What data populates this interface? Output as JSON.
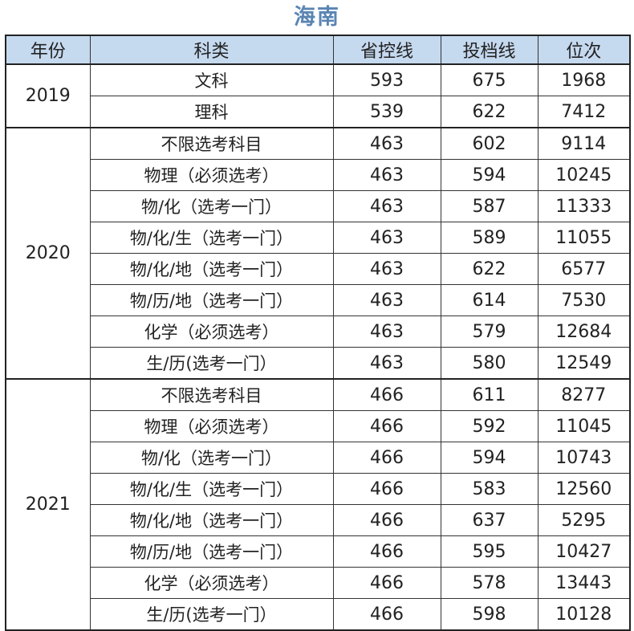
{
  "title": "海南",
  "headers": [
    "年份",
    "科类",
    "省控线",
    "投档线",
    "位次"
  ],
  "groups": [
    {
      "year": "2019",
      "rows": [
        {
          "category": "文科",
          "provincial": "593",
          "cutoff": "675",
          "rank": "1968"
        },
        {
          "category": "理科",
          "provincial": "539",
          "cutoff": "622",
          "rank": "7412"
        }
      ]
    },
    {
      "year": "2020",
      "rows": [
        {
          "category": "不限选考科目",
          "provincial": "463",
          "cutoff": "602",
          "rank": "9114"
        },
        {
          "category": "物理（必须选考）",
          "provincial": "463",
          "cutoff": "594",
          "rank": "10245"
        },
        {
          "category": "物/化（选考一门）",
          "provincial": "463",
          "cutoff": "587",
          "rank": "11333"
        },
        {
          "category": "物/化/生（选考一门）",
          "provincial": "463",
          "cutoff": "589",
          "rank": "11055"
        },
        {
          "category": "物/化/地（选考一门）",
          "provincial": "463",
          "cutoff": "622",
          "rank": "6577"
        },
        {
          "category": "物/历/地（选考一门）",
          "provincial": "463",
          "cutoff": "614",
          "rank": "7530"
        },
        {
          "category": "化学（必须选考）",
          "provincial": "463",
          "cutoff": "579",
          "rank": "12684"
        },
        {
          "category": "生/历(选考一门）",
          "provincial": "463",
          "cutoff": "580",
          "rank": "12549"
        }
      ]
    },
    {
      "year": "2021",
      "rows": [
        {
          "category": "不限选考科目",
          "provincial": "466",
          "cutoff": "611",
          "rank": "8277"
        },
        {
          "category": "物理（必须选考）",
          "provincial": "466",
          "cutoff": "592",
          "rank": "11045"
        },
        {
          "category": "物/化（选考一门）",
          "provincial": "466",
          "cutoff": "594",
          "rank": "10743"
        },
        {
          "category": "物/化/生（选考一门）",
          "provincial": "466",
          "cutoff": "583",
          "rank": "12560"
        },
        {
          "category": "物/化/地（选考一门）",
          "provincial": "466",
          "cutoff": "637",
          "rank": "5295"
        },
        {
          "category": "物/历/地（选考一门）",
          "provincial": "466",
          "cutoff": "595",
          "rank": "10427"
        },
        {
          "category": "化学（必须选考）",
          "provincial": "466",
          "cutoff": "578",
          "rank": "13443"
        },
        {
          "category": "生/历(选考一门）",
          "provincial": "466",
          "cutoff": "598",
          "rank": "10128"
        }
      ]
    }
  ]
}
